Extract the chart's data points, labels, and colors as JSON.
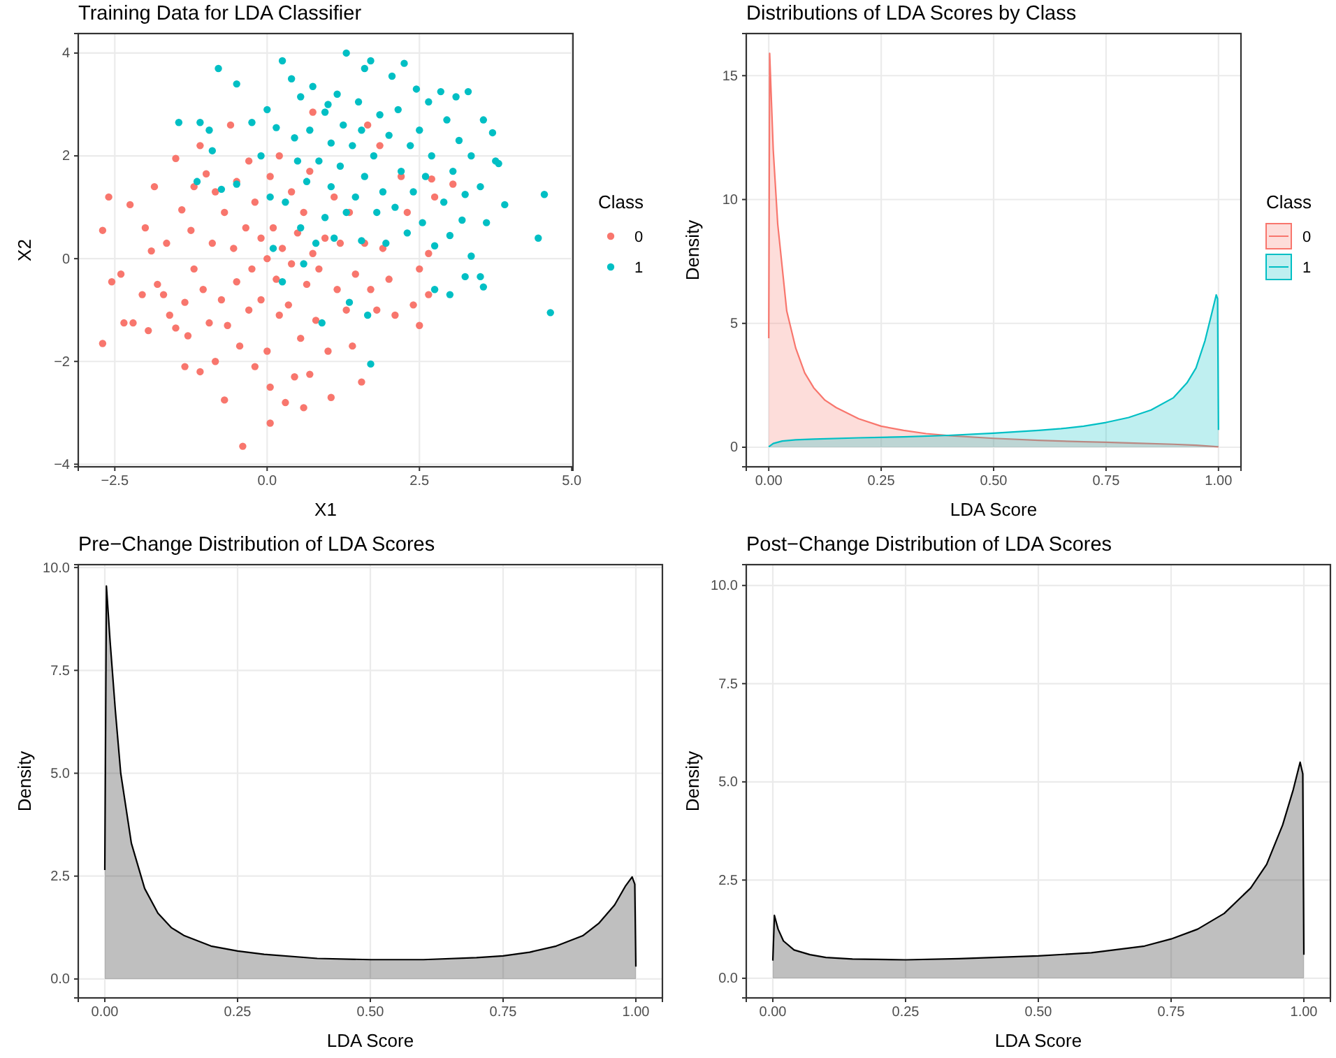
{
  "chart_data": [
    {
      "type": "scatter",
      "title": "Training Data for LDA Classifier",
      "xlabel": "X1",
      "ylabel": "X2",
      "legend_title": "Class",
      "legend": "right",
      "marker": "circle",
      "grid": true,
      "xlim": [
        -3.1,
        5.02
      ],
      "xticks": [
        {
          "value": -2.5,
          "label": "−2.5"
        },
        {
          "value": 0,
          "label": "0.0"
        },
        {
          "value": 2.5,
          "label": "2.5"
        },
        {
          "value": 5,
          "label": "5.0"
        }
      ],
      "ylim": [
        -4.05,
        4.38
      ],
      "yticks": [
        {
          "value": -4,
          "label": "−4"
        },
        {
          "value": -2,
          "label": "−2"
        },
        0,
        2,
        4
      ],
      "series": [
        {
          "name": "0",
          "color": "#f8766d",
          "x": [
            -2.7,
            -2.6,
            -2.7,
            -2.55,
            -2.4,
            -2.35,
            -2.2,
            -2.25,
            -2.0,
            -2.05,
            -1.95,
            -1.9,
            -1.85,
            -1.8,
            -1.7,
            -1.65,
            -1.6,
            -1.5,
            -1.5,
            -1.4,
            -1.35,
            -1.35,
            -1.3,
            -1.25,
            -1.2,
            -1.2,
            -1.1,
            -1.1,
            -1.05,
            -1.0,
            -0.95,
            -0.9,
            -0.85,
            -0.85,
            -0.75,
            -0.7,
            -0.7,
            -0.65,
            -0.6,
            -0.55,
            -0.5,
            -0.5,
            -0.45,
            -0.4,
            -0.35,
            -0.3,
            -0.3,
            -0.25,
            -0.2,
            -0.2,
            -0.1,
            -0.1,
            0.0,
            0.0,
            0.05,
            0.05,
            0.05,
            0.1,
            0.15,
            0.2,
            0.2,
            0.25,
            0.3,
            0.35,
            0.4,
            0.4,
            0.45,
            0.5,
            0.55,
            0.6,
            0.6,
            0.65,
            0.7,
            0.7,
            0.75,
            0.75,
            0.8,
            0.85,
            0.95,
            1.0,
            1.05,
            1.1,
            1.15,
            1.2,
            1.3,
            1.35,
            1.4,
            1.45,
            1.55,
            1.6,
            1.65,
            1.7,
            1.8,
            1.85,
            1.9,
            2.0,
            2.1,
            2.2,
            2.3,
            2.4,
            2.5,
            2.5,
            2.65,
            2.7,
            2.75,
            3.05,
            2.65
          ],
          "values": [
            0.55,
            1.2,
            -1.65,
            -0.45,
            -0.3,
            -1.25,
            -1.25,
            1.05,
            0.6,
            -0.7,
            -1.4,
            0.15,
            1.4,
            -0.5,
            -0.7,
            0.3,
            -1.1,
            -1.35,
            1.95,
            0.95,
            -0.85,
            -2.1,
            -1.5,
            0.55,
            1.4,
            -0.2,
            -2.2,
            2.2,
            -0.6,
            1.65,
            -1.25,
            0.3,
            1.3,
            -2.0,
            -0.8,
            0.9,
            -2.75,
            -1.3,
            2.6,
            0.2,
            -0.45,
            1.5,
            -1.7,
            -3.65,
            0.6,
            -1.0,
            1.9,
            -0.2,
            1.1,
            -2.1,
            0.4,
            -0.8,
            -1.8,
            0.0,
            1.6,
            -2.5,
            -3.2,
            0.6,
            -0.4,
            -1.1,
            2.0,
            0.2,
            -2.8,
            -0.9,
            1.3,
            -0.1,
            -2.3,
            0.5,
            -1.55,
            -2.9,
            0.9,
            -0.5,
            1.7,
            -2.25,
            2.85,
            0.1,
            -1.2,
            -0.2,
            0.4,
            -1.8,
            -2.7,
            1.2,
            -0.6,
            0.3,
            -1.0,
            0.9,
            -1.7,
            -0.3,
            -2.4,
            0.3,
            2.6,
            -0.6,
            -1.0,
            2.2,
            0.2,
            -0.4,
            -1.1,
            1.6,
            0.9,
            -0.9,
            -1.3,
            -0.2,
            0.1,
            1.55,
            1.2,
            1.45,
            -0.7
          ]
        },
        {
          "name": "1",
          "color": "#00bfc4",
          "x": [
            -1.45,
            -1.1,
            -1.15,
            -0.95,
            -0.9,
            -0.8,
            -0.75,
            -0.5,
            -0.5,
            -0.25,
            -0.1,
            0.0,
            0.05,
            0.1,
            0.15,
            0.25,
            0.25,
            0.3,
            0.4,
            0.45,
            0.5,
            0.55,
            0.55,
            0.6,
            0.65,
            0.7,
            0.75,
            0.8,
            0.85,
            0.9,
            0.95,
            0.95,
            1.0,
            1.05,
            1.05,
            1.1,
            1.15,
            1.2,
            1.25,
            1.3,
            1.3,
            1.35,
            1.4,
            1.45,
            1.5,
            1.55,
            1.55,
            1.6,
            1.6,
            1.65,
            1.7,
            1.7,
            1.75,
            1.8,
            1.85,
            1.9,
            1.95,
            2.0,
            2.05,
            2.1,
            2.15,
            2.2,
            2.25,
            2.3,
            2.35,
            2.4,
            2.45,
            2.5,
            2.55,
            2.6,
            2.65,
            2.7,
            2.75,
            2.75,
            2.85,
            2.9,
            2.95,
            3.0,
            3.0,
            3.05,
            3.1,
            3.15,
            3.2,
            3.25,
            3.25,
            3.3,
            3.35,
            3.35,
            3.5,
            3.5,
            3.55,
            3.55,
            3.6,
            3.7,
            3.75,
            3.8,
            3.9,
            4.45,
            4.55,
            4.65
          ],
          "values": [
            2.65,
            2.65,
            1.5,
            2.5,
            2.1,
            3.7,
            1.35,
            3.4,
            1.45,
            2.65,
            2.0,
            2.9,
            1.2,
            0.2,
            2.55,
            3.85,
            -0.45,
            1.1,
            3.5,
            2.35,
            1.9,
            0.6,
            3.15,
            -0.1,
            1.5,
            2.5,
            3.35,
            0.3,
            1.9,
            -1.25,
            2.85,
            0.8,
            3.0,
            2.25,
            1.4,
            0.4,
            3.2,
            1.8,
            2.6,
            4.0,
            0.9,
            -0.85,
            2.2,
            1.2,
            3.05,
            0.35,
            2.5,
            1.6,
            3.7,
            -1.1,
            -2.05,
            3.85,
            2.0,
            0.9,
            2.8,
            1.3,
            0.3,
            2.4,
            3.55,
            1.0,
            2.9,
            1.7,
            3.8,
            0.5,
            2.2,
            1.3,
            3.3,
            2.5,
            0.7,
            1.6,
            3.05,
            2.0,
            -0.6,
            0.25,
            3.25,
            1.1,
            2.7,
            -0.7,
            0.45,
            1.7,
            3.15,
            2.3,
            0.75,
            1.25,
            -0.35,
            3.25,
            0.05,
            2.0,
            1.4,
            -0.35,
            2.7,
            -0.55,
            0.7,
            2.45,
            1.9,
            1.85,
            1.05,
            0.4,
            1.25,
            -1.05
          ]
        }
      ]
    },
    {
      "type": "area",
      "title": "Distributions of LDA Scores by Class",
      "xlabel": "LDA Score",
      "ylabel": "Density",
      "legend_title": "Class",
      "legend": "right",
      "grid": true,
      "xlim": [
        -0.05,
        1.05
      ],
      "xticks": [
        {
          "value": 0,
          "label": "0.00"
        },
        {
          "value": 0.25,
          "label": "0.25"
        },
        {
          "value": 0.5,
          "label": "0.50"
        },
        {
          "value": 0.75,
          "label": "0.75"
        },
        {
          "value": 1,
          "label": "1.00"
        }
      ],
      "ylim": [
        -0.79,
        16.7
      ],
      "yticks": [
        0,
        5,
        10,
        15
      ],
      "series": [
        {
          "name": "0",
          "color": "#f8766d",
          "x": [
            0,
            0.002,
            0.01,
            0.02,
            0.04,
            0.06,
            0.08,
            0.1,
            0.125,
            0.15,
            0.2,
            0.25,
            0.3,
            0.35,
            0.4,
            0.5,
            0.6,
            0.7,
            0.75,
            0.8,
            0.9,
            0.95,
            1.0
          ],
          "values": [
            4.4,
            15.9,
            12,
            9,
            5.5,
            4.0,
            3.0,
            2.4,
            1.9,
            1.6,
            1.15,
            0.85,
            0.68,
            0.55,
            0.47,
            0.36,
            0.28,
            0.22,
            0.2,
            0.17,
            0.12,
            0.08,
            0.02
          ]
        },
        {
          "name": "1",
          "color": "#00bfc4",
          "x": [
            0,
            0.01,
            0.03,
            0.06,
            0.1,
            0.2,
            0.3,
            0.4,
            0.5,
            0.6,
            0.65,
            0.7,
            0.75,
            0.8,
            0.85,
            0.9,
            0.93,
            0.95,
            0.97,
            0.985,
            0.995,
            0.998,
            1.0
          ],
          "values": [
            0.02,
            0.15,
            0.25,
            0.3,
            0.33,
            0.38,
            0.42,
            0.48,
            0.57,
            0.68,
            0.75,
            0.85,
            1.0,
            1.2,
            1.5,
            2.0,
            2.6,
            3.2,
            4.3,
            5.4,
            6.15,
            6.0,
            0.7
          ]
        }
      ]
    },
    {
      "type": "area",
      "title": "Pre−Change Distribution of LDA Scores",
      "xlabel": "LDA Score",
      "ylabel": "Density",
      "grid": true,
      "xlim": [
        -0.05,
        1.05
      ],
      "xticks": [
        {
          "value": 0,
          "label": "0.00"
        },
        {
          "value": 0.25,
          "label": "0.25"
        },
        {
          "value": 0.5,
          "label": "0.50"
        },
        {
          "value": 0.75,
          "label": "0.75"
        },
        {
          "value": 1,
          "label": "1.00"
        }
      ],
      "ylim": [
        -0.46,
        10.07
      ],
      "yticks": [
        {
          "value": 0,
          "label": "0.0"
        },
        2.5,
        {
          "value": 5,
          "label": "5.0"
        },
        7.5,
        {
          "value": 10,
          "label": "10.0"
        }
      ],
      "series": [
        {
          "color": "#000000",
          "x": [
            0,
            0.003,
            0.01,
            0.02,
            0.03,
            0.05,
            0.075,
            0.1,
            0.125,
            0.15,
            0.2,
            0.25,
            0.3,
            0.4,
            0.5,
            0.6,
            0.7,
            0.75,
            0.8,
            0.85,
            0.9,
            0.93,
            0.96,
            0.98,
            0.993,
            0.998,
            1.0
          ],
          "values": [
            2.65,
            9.55,
            8.2,
            6.5,
            5.0,
            3.3,
            2.2,
            1.6,
            1.25,
            1.05,
            0.8,
            0.68,
            0.6,
            0.5,
            0.47,
            0.47,
            0.52,
            0.56,
            0.65,
            0.8,
            1.05,
            1.35,
            1.8,
            2.25,
            2.48,
            2.3,
            0.3
          ]
        }
      ]
    },
    {
      "type": "area",
      "title": "Post−Change Distribution of LDA Scores",
      "xlabel": "LDA Score",
      "ylabel": "Density",
      "grid": true,
      "xlim": [
        -0.05,
        1.05
      ],
      "xticks": [
        {
          "value": 0,
          "label": "0.00"
        },
        {
          "value": 0.25,
          "label": "0.25"
        },
        {
          "value": 0.5,
          "label": "0.50"
        },
        {
          "value": 0.75,
          "label": "0.75"
        },
        {
          "value": 1,
          "label": "1.00"
        }
      ],
      "ylim": [
        -0.5,
        10.53
      ],
      "yticks": [
        {
          "value": 0,
          "label": "0.0"
        },
        2.5,
        {
          "value": 5,
          "label": "5.0"
        },
        7.5,
        {
          "value": 10,
          "label": "10.0"
        }
      ],
      "series": [
        {
          "color": "#000000",
          "x": [
            0,
            0.003,
            0.01,
            0.02,
            0.04,
            0.07,
            0.1,
            0.15,
            0.25,
            0.35,
            0.5,
            0.6,
            0.7,
            0.75,
            0.8,
            0.85,
            0.9,
            0.93,
            0.96,
            0.98,
            0.993,
            0.998,
            1.0
          ],
          "values": [
            0.45,
            1.6,
            1.25,
            0.95,
            0.72,
            0.6,
            0.53,
            0.49,
            0.47,
            0.5,
            0.57,
            0.65,
            0.82,
            1.0,
            1.25,
            1.65,
            2.3,
            2.9,
            3.9,
            4.8,
            5.5,
            5.2,
            0.6
          ]
        }
      ]
    }
  ]
}
